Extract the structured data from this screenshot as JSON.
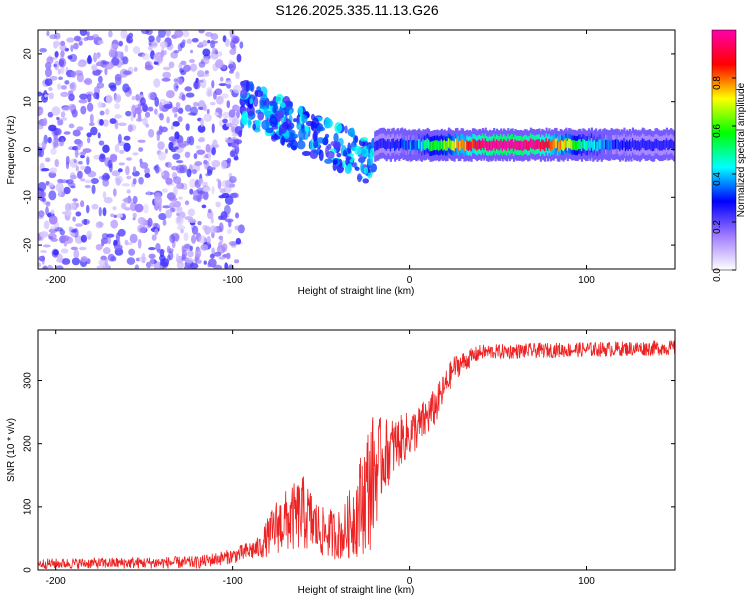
{
  "title": "S126.2025.335.11.13.G26",
  "chart_data": [
    {
      "type": "heatmap",
      "name": "spectrogram",
      "xlabel": "Height of straight line (km)",
      "ylabel": "Frequency (Hz)",
      "xlim": [
        -210,
        150
      ],
      "ylim": [
        -25,
        25
      ],
      "xticks": [
        -200,
        -100,
        0,
        100
      ],
      "yticks": [
        -20,
        -10,
        0,
        10,
        20
      ],
      "colorbar": {
        "label": "Normalized spectral amplitude",
        "range": [
          0,
          1
        ],
        "ticks": [
          "0.0",
          "0.2",
          "0.4",
          "0.6",
          "0.8"
        ],
        "tick_values": [
          0,
          0.2,
          0.4,
          0.6,
          0.8
        ],
        "colors": [
          "#ffffff",
          "#a07cff",
          "#0000ff",
          "#00ffff",
          "#00ff00",
          "#ffff00",
          "#ff0000",
          "#ff00aa"
        ]
      },
      "regions": [
        {
          "desc": "noise",
          "x_range": [
            -210,
            -95
          ],
          "f_range": [
            -25,
            25
          ],
          "amplitude": [
            0.05,
            0.25
          ]
        },
        {
          "desc": "transition",
          "x_range": [
            -95,
            -20
          ],
          "f_center_start": 10,
          "f_center_end": -3,
          "amplitude": [
            0.2,
            0.45
          ]
        },
        {
          "desc": "stable tone",
          "x_range": [
            -20,
            150
          ],
          "f_center": 1,
          "amplitude_peak": 0.95,
          "peak_at": 55
        }
      ]
    },
    {
      "type": "line",
      "name": "snr",
      "xlabel": "Height of straight line (km)",
      "ylabel": "SNR (10 * v/v)",
      "xlim": [
        -210,
        150
      ],
      "ylim": [
        0,
        380
      ],
      "xticks": [
        -200,
        -100,
        0,
        100
      ],
      "yticks": [
        0,
        100,
        200,
        300
      ],
      "color": "#ee2222",
      "profile": [
        {
          "x": -210,
          "mean": 10,
          "noise": 8
        },
        {
          "x": -120,
          "mean": 12,
          "noise": 10
        },
        {
          "x": -100,
          "mean": 22,
          "noise": 12
        },
        {
          "x": -85,
          "mean": 35,
          "noise": 18
        },
        {
          "x": -75,
          "mean": 70,
          "noise": 45
        },
        {
          "x": -60,
          "mean": 90,
          "noise": 60
        },
        {
          "x": -50,
          "mean": 60,
          "noise": 40
        },
        {
          "x": -38,
          "mean": 55,
          "noise": 40
        },
        {
          "x": -30,
          "mean": 90,
          "noise": 70
        },
        {
          "x": -22,
          "mean": 140,
          "noise": 110
        },
        {
          "x": -15,
          "mean": 180,
          "noise": 60
        },
        {
          "x": -5,
          "mean": 205,
          "noise": 40
        },
        {
          "x": 5,
          "mean": 225,
          "noise": 35
        },
        {
          "x": 15,
          "mean": 260,
          "noise": 30
        },
        {
          "x": 25,
          "mean": 320,
          "noise": 20
        },
        {
          "x": 40,
          "mean": 345,
          "noise": 12
        },
        {
          "x": 80,
          "mean": 348,
          "noise": 12
        },
        {
          "x": 150,
          "mean": 352,
          "noise": 12
        }
      ]
    }
  ]
}
